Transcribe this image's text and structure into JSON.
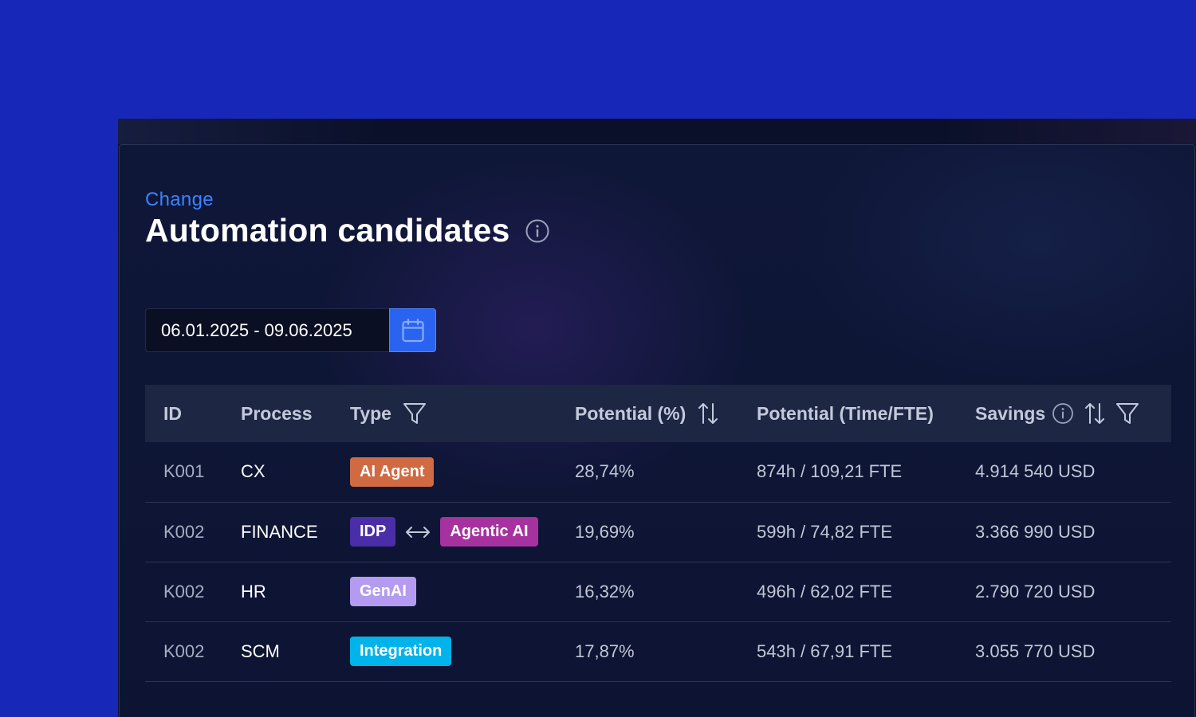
{
  "header": {
    "eyebrow": "Change",
    "title": "Automation candidates"
  },
  "date_range": {
    "value": "06.01.2025 - 09.06.2025"
  },
  "table": {
    "columns": {
      "id": "ID",
      "process": "Process",
      "type": "Type",
      "potential_pct": "Potential (%)",
      "potential_time": "Potential (Time/FTE)",
      "savings": "Savings"
    },
    "rows": [
      {
        "id": "K001",
        "process": "CX",
        "type_primary": "AI Agent",
        "type_secondary": "",
        "potential_pct": "28,74%",
        "potential_time": "874h / 109,21 FTE",
        "savings": "4.914 540 USD"
      },
      {
        "id": "K002",
        "process": "FINANCE",
        "type_primary": "IDP",
        "type_secondary": "Agentic AI",
        "potential_pct": "19,69%",
        "potential_time": "599h / 74,82 FTE",
        "savings": "3.366 990 USD"
      },
      {
        "id": "K002",
        "process": "HR",
        "type_primary": "GenAI",
        "type_secondary": "",
        "potential_pct": "16,32%",
        "potential_time": "496h / 62,02 FTE",
        "savings": "2.790 720 USD"
      },
      {
        "id": "K002",
        "process": "SCM",
        "type_primary": "Integration",
        "type_secondary": "",
        "potential_pct": "17,87%",
        "potential_time": "543h / 67,91 FTE",
        "savings": "3.055 770 USD"
      }
    ]
  },
  "badge_colors": {
    "ai_agent": "#d06a42",
    "idp": "#4a2ea8",
    "agentic_ai": "#a6329f",
    "genai": "#b49af0",
    "integration": "#00b3ea"
  },
  "icons": {
    "title_info": "info-icon",
    "calendar": "calendar-icon",
    "type_filter": "filter-icon",
    "potential_sort": "sort-icon",
    "savings_info": "info-icon",
    "savings_sort": "sort-icon",
    "savings_filter": "filter-icon",
    "type_link": "double-arrow-icon"
  },
  "colors": {
    "page_background": "#1727b8",
    "panel_background": "#0f1738",
    "accent": "#3c82ff",
    "calendar_button": "#2a63f0"
  }
}
